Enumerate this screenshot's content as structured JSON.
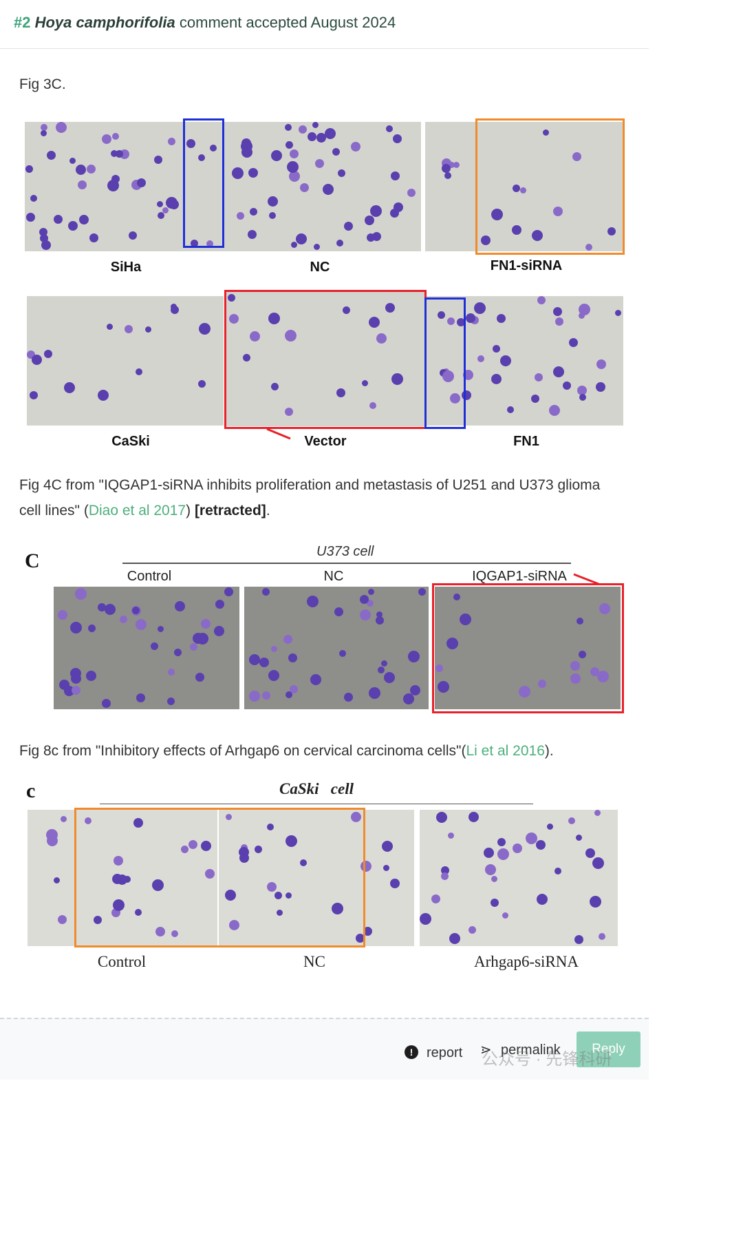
{
  "header": {
    "number": "#2",
    "species": "Hoya camphorifolia",
    "rest": "comment accepted August 2024"
  },
  "captions": {
    "fig3c": "Fig 3C.",
    "fig4c_a": "Fig 4C from \"IQGAP1-siRNA inhibits proliferation and metastasis of U251 and U373 glioma cell lines\" (",
    "fig4c_link": "Diao et al 2017",
    "fig4c_b": ") ",
    "fig4c_bold": "[retracted]",
    "fig4c_c": ".",
    "fig8c_a": "Fig 8c from \"Inhibitory effects of Arhgap6 on cervical carcinoma cells\"(",
    "fig8c_link": "Li et al 2016",
    "fig8c_b": ")."
  },
  "figure1": {
    "row1_labels": [
      "SiHa",
      "NC",
      "FN1-siRNA"
    ],
    "row2_labels": [
      "CaSki",
      "Vector",
      "FN1"
    ]
  },
  "figure2": {
    "letter": "C",
    "title": "U373 cell",
    "labels": [
      "Control",
      "NC",
      "IQGAP1-siRNA"
    ]
  },
  "figure3": {
    "letter": "c",
    "title": "CaSki   cell",
    "labels": [
      "Control",
      "NC",
      "Arhgap6-siRNA"
    ]
  },
  "colors": {
    "accent": "#3fa27c",
    "link": "#4caf7d",
    "red_box": "#e8202a",
    "blue_box": "#1f2fd8",
    "orange_box": "#f08a2a",
    "cell_stain": "#5a3fae"
  },
  "footer": {
    "report": "report",
    "permalink": "permalink",
    "reply": "Reply",
    "watermark": "公众号 · 先锋科研"
  }
}
